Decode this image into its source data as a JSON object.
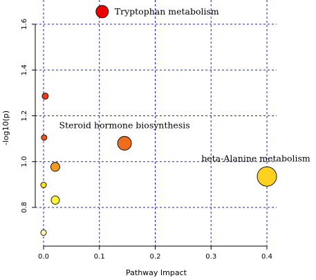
{
  "chart_data": {
    "type": "scatter",
    "xlabel": "Pathway Impact",
    "ylabel": "-log10(p)",
    "xlim": [
      -0.01,
      0.43
    ],
    "ylim": [
      0.66,
      1.66
    ],
    "x_ticks": [
      0.0,
      0.1,
      0.2,
      0.3,
      0.4
    ],
    "x_tick_labels": [
      "0.0",
      "0.1",
      "0.2",
      "0.3",
      "0.4"
    ],
    "y_ticks": [
      0.8,
      1.0,
      1.2,
      1.4,
      1.6
    ],
    "y_tick_labels": [
      "0.8",
      "1.0",
      "1.2",
      "1.4",
      "1.6"
    ],
    "grid": true,
    "grid_color": "#1a1aff",
    "points": [
      {
        "x": 0.105,
        "y": 1.655,
        "size": 9,
        "color": "#ee0000",
        "label": "Tryptophan metabolism"
      },
      {
        "x": 0.003,
        "y": 1.286,
        "size": 4.5,
        "color": "#e83a1a",
        "label": ""
      },
      {
        "x": 0.001,
        "y": 1.105,
        "size": 4,
        "color": "#ea5518",
        "label": ""
      },
      {
        "x": 0.145,
        "y": 1.08,
        "size": 10,
        "color": "#ef6e1b",
        "label": "Steroid hormone biosynthesis"
      },
      {
        "x": 0.021,
        "y": 0.977,
        "size": 6.5,
        "color": "#f39a1e",
        "label": ""
      },
      {
        "x": 0.4,
        "y": 0.935,
        "size": 14,
        "color": "#ffd21f",
        "label": "beta-Alanine metabolism"
      },
      {
        "x": 0.0,
        "y": 0.898,
        "size": 4,
        "color": "#ffe41a",
        "label": ""
      },
      {
        "x": 0.021,
        "y": 0.832,
        "size": 6,
        "color": "#fff23a",
        "label": ""
      },
      {
        "x": 0.0,
        "y": 0.69,
        "size": 4,
        "color": "#ffffb0",
        "label": ""
      }
    ]
  }
}
